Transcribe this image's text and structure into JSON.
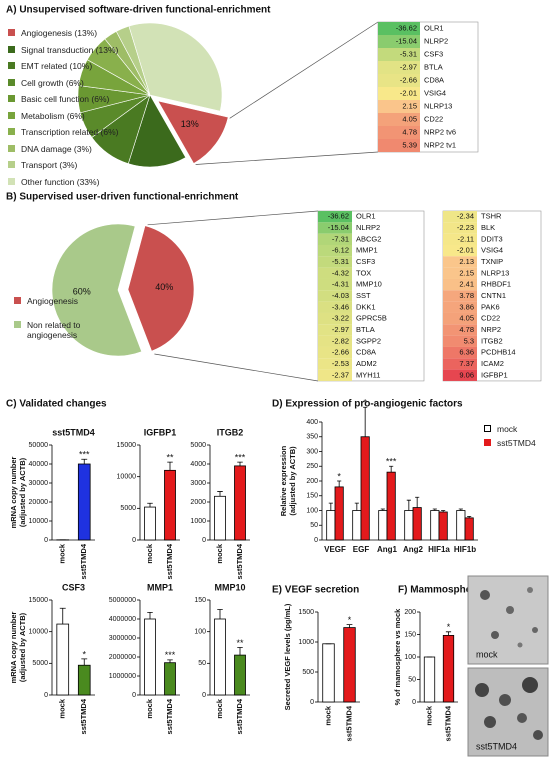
{
  "panel_titles": [
    "A) Unsupervised software-driven functional-enrichment",
    "B) Supervised user-driven functional-enrichment",
    "C) Validated changes",
    "D) Expression of pro-angiogenic factors",
    "E) VEGF secretion",
    "F) Mammosphere formation"
  ],
  "chart_data": [
    {
      "type": "pie",
      "categories": [
        "Angiogenesis (13%)",
        "Signal transduction (13%)",
        "EMT related (10%)",
        "Cell growth (6%)",
        "Basic cell function (6%)",
        "Metabolism (6%)",
        "Transcription related (6%)",
        "DNA damage (3%)",
        "Transport (3%)",
        "Other function (33%)"
      ],
      "values": [
        13,
        13,
        10,
        6,
        6,
        6,
        6,
        3,
        3,
        33
      ],
      "value_labels": [
        "13%",
        null,
        null,
        null,
        null,
        null,
        null,
        null,
        null,
        null
      ],
      "colors": [
        "#c9504f",
        "#3b6a1c",
        "#4a7a22",
        "#5a8a2a",
        "#6a9832",
        "#78a43c",
        "#89b04c",
        "#9ebd66",
        "#b6cf8a",
        "#d2e2b6"
      ]
    },
    {
      "type": "pie",
      "categories": [
        "Angiogenesis",
        "Non related to angiogenesis"
      ],
      "values": [
        40,
        60
      ],
      "value_labels": [
        "40%",
        "60%"
      ],
      "colors": [
        "#c9504f",
        "#a9c98a"
      ]
    },
    {
      "type": "bar",
      "title": "sst5TMD4",
      "ylabel": [
        "mRNA copy number",
        "(adjusted by ACTB)"
      ],
      "categories": [
        "mock",
        "sst5TMD4"
      ],
      "values": [
        100,
        40000
      ],
      "errors": [
        0,
        2500
      ],
      "stars": [
        null,
        "***"
      ],
      "colors": [
        "#ffffff",
        "#1f32e0"
      ],
      "ylim": [
        0,
        50000
      ],
      "yticks": [
        0,
        10000,
        20000,
        30000,
        40000,
        50000
      ]
    },
    {
      "type": "bar",
      "title": "IGFBP1",
      "categories": [
        "mock",
        "sst5TMD4"
      ],
      "values": [
        5200,
        11000
      ],
      "errors": [
        600,
        1300
      ],
      "stars": [
        null,
        "**"
      ],
      "colors": [
        "#ffffff",
        "#e31a1c"
      ],
      "ylim": [
        0,
        15000
      ],
      "yticks": [
        0,
        5000,
        10000,
        15000
      ]
    },
    {
      "type": "bar",
      "title": "ITGB2",
      "categories": [
        "mock",
        "sst5TMD4"
      ],
      "values": [
        2300,
        3900
      ],
      "errors": [
        250,
        200
      ],
      "stars": [
        null,
        "***"
      ],
      "colors": [
        "#ffffff",
        "#e31a1c"
      ],
      "ylim": [
        0,
        5000
      ],
      "yticks": [
        0,
        1000,
        2000,
        3000,
        4000,
        5000
      ]
    },
    {
      "type": "bar",
      "title": "CSF3",
      "ylabel": [
        "mRNA copy number",
        "(adjusted by ACTB)"
      ],
      "categories": [
        "mock",
        "sst5TMD4"
      ],
      "values": [
        11200,
        4700
      ],
      "errors": [
        2500,
        1000
      ],
      "stars": [
        null,
        "*"
      ],
      "colors": [
        "#ffffff",
        "#4a8a1f"
      ],
      "ylim": [
        0,
        15000
      ],
      "yticks": [
        0,
        5000,
        10000,
        15000
      ]
    },
    {
      "type": "bar",
      "title": "MMP1",
      "categories": [
        "mock",
        "sst5TMD4"
      ],
      "values": [
        4000000,
        1700000
      ],
      "errors": [
        350000,
        150000
      ],
      "stars": [
        null,
        "***"
      ],
      "colors": [
        "#ffffff",
        "#4a8a1f"
      ],
      "ylim": [
        0,
        5000000
      ],
      "yticks": [
        0,
        1000000,
        2000000,
        3000000,
        4000000,
        5000000
      ]
    },
    {
      "type": "bar",
      "title": "MMP10",
      "categories": [
        "mock",
        "sst5TMD4"
      ],
      "values": [
        120,
        63
      ],
      "errors": [
        15,
        12
      ],
      "stars": [
        null,
        "**"
      ],
      "colors": [
        "#ffffff",
        "#4a8a1f"
      ],
      "ylim": [
        0,
        150
      ],
      "yticks": [
        0,
        50,
        100,
        150
      ]
    },
    {
      "type": "bar",
      "ylabel": [
        "Relative expression",
        "(adjusted by ACTB)"
      ],
      "categories": [
        "VEGF",
        "EGF",
        "Ang1",
        "Ang2",
        "HIF1a",
        "HIF1b"
      ],
      "series": [
        {
          "name": "mock",
          "color": "#ffffff",
          "values": [
            100,
            100,
            100,
            100,
            100,
            100
          ],
          "errors": [
            25,
            25,
            5,
            35,
            5,
            5
          ]
        },
        {
          "name": "sst5TMD4",
          "color": "#e31a1c",
          "values": [
            180,
            350,
            230,
            110,
            95,
            75
          ],
          "errors": [
            20,
            100,
            20,
            35,
            5,
            5
          ],
          "stars": [
            "*",
            "*",
            "***",
            null,
            null,
            null
          ]
        }
      ],
      "ylim": [
        0,
        400
      ],
      "yticks": [
        0,
        50,
        100,
        150,
        200,
        250,
        300,
        350,
        400
      ]
    },
    {
      "type": "bar",
      "ylabel": [
        "Secreted VEGF levels (pg/mL)"
      ],
      "categories": [
        "mock",
        "sst5TMD4"
      ],
      "values": [
        970,
        1240
      ],
      "errors": [
        0,
        50
      ],
      "stars": [
        null,
        "*"
      ],
      "colors": [
        "#ffffff",
        "#e31a1c"
      ],
      "ylim": [
        0,
        1500
      ],
      "yticks": [
        0,
        500,
        1000,
        1500
      ]
    },
    {
      "type": "bar",
      "ylabel": [
        "% of mamosphere vs mock"
      ],
      "categories": [
        "mock",
        "sst5TMD4"
      ],
      "values": [
        100,
        148
      ],
      "errors": [
        0,
        8
      ],
      "stars": [
        null,
        "*"
      ],
      "colors": [
        "#ffffff",
        "#e31a1c"
      ],
      "ylim": [
        0,
        200
      ],
      "yticks": [
        0,
        50,
        100,
        150,
        200
      ]
    }
  ],
  "gene_table_a": {
    "rows": [
      [
        "OLR1",
        -36.62
      ],
      [
        "NLRP2",
        -15.04
      ],
      [
        "CSF3",
        -5.31
      ],
      [
        "BTLA",
        -2.97
      ],
      [
        "CD8A",
        -2.66
      ],
      [
        "VSIG4",
        -2.01
      ],
      [
        "NLRP13",
        2.15
      ],
      [
        "CD22",
        4.05
      ],
      [
        "NRP2 tv6",
        4.78
      ],
      [
        "NRP2 tv1",
        5.39
      ]
    ]
  },
  "gene_table_b": {
    "columns": [
      [
        [
          "OLR1",
          -36.62
        ],
        [
          "NLRP2",
          -15.04
        ],
        [
          "ABCG2",
          -7.31
        ],
        [
          "MMP1",
          -6.12
        ],
        [
          "CSF3",
          -5.31
        ],
        [
          "TOX",
          -4.32
        ],
        [
          "MMP10",
          -4.31
        ],
        [
          "SST",
          -4.03
        ],
        [
          "DKK1",
          -3.46
        ],
        [
          "GPRC5B",
          -3.22
        ],
        [
          "BTLA",
          -2.97
        ],
        [
          "SGPP2",
          -2.82
        ],
        [
          "CD8A",
          -2.66
        ],
        [
          "ADM2",
          -2.53
        ],
        [
          "MYH11",
          -2.37
        ]
      ],
      [
        [
          "TSHR",
          -2.34
        ],
        [
          "BLK",
          -2.23
        ],
        [
          "DDIT3",
          -2.11
        ],
        [
          "VSIG4",
          -2.01
        ],
        [
          "TXNIP",
          2.13
        ],
        [
          "NLRP13",
          2.15
        ],
        [
          "RHBDF1",
          2.41
        ],
        [
          "CNTN1",
          3.78
        ],
        [
          "PAK6",
          3.86
        ],
        [
          "CD22",
          4.05
        ],
        [
          "NRP2",
          4.78
        ],
        [
          "ITGB2",
          5.3
        ],
        [
          "PCDHB14",
          6.36
        ],
        [
          "ICAM2",
          7.37
        ],
        [
          "IGFBP1",
          9.06
        ]
      ]
    ]
  },
  "images": [
    "mock",
    "sst5TMD4"
  ]
}
